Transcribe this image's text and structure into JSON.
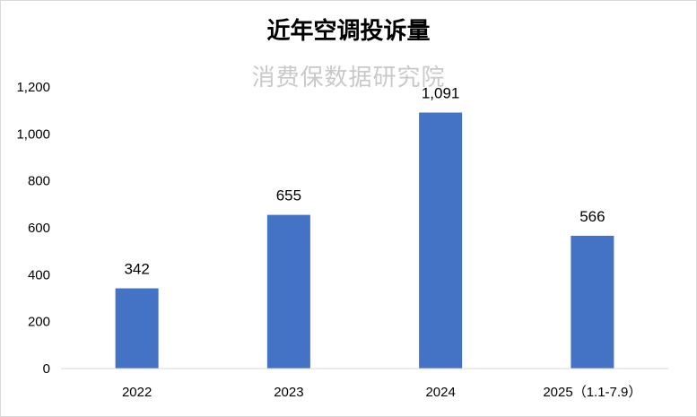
{
  "chart_data": {
    "type": "bar",
    "title": "近年空调投诉量",
    "watermark": "消费保数据研究院",
    "categories": [
      "2022",
      "2023",
      "2024",
      "2025（1.1-7.9）"
    ],
    "values": [
      342,
      655,
      1091,
      566
    ],
    "data_labels": [
      "342",
      "655",
      "1,091",
      "566"
    ],
    "ylim": [
      0,
      1200
    ],
    "yticks": [
      0,
      200,
      400,
      600,
      800,
      1000,
      1200
    ],
    "ytick_labels": [
      "0",
      "200",
      "400",
      "600",
      "800",
      "1,000",
      "1,200"
    ],
    "bar_color": "#4472c4",
    "grid": false,
    "xlabel": "",
    "ylabel": ""
  }
}
